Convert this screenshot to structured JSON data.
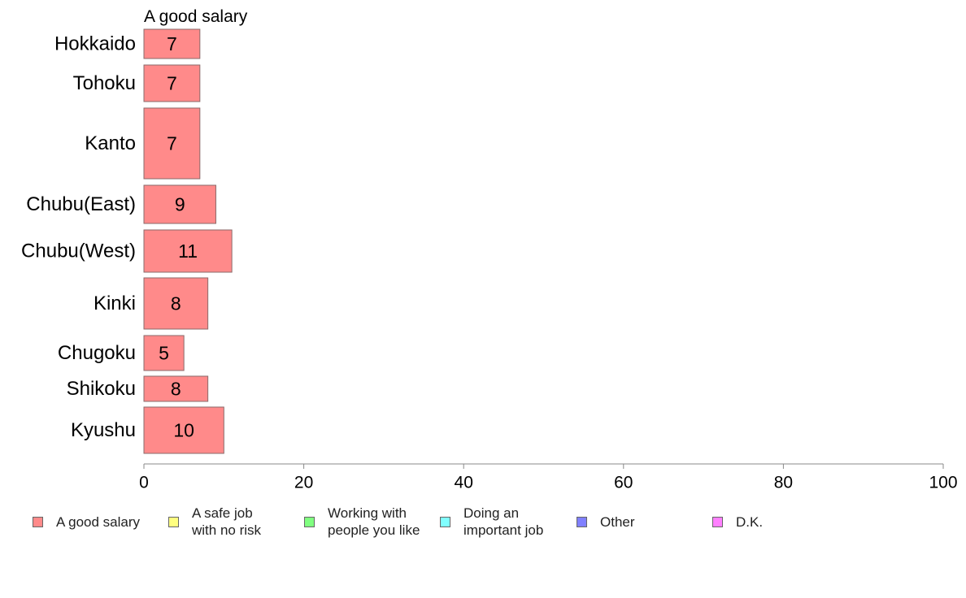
{
  "chart_data": {
    "type": "bar",
    "orientation": "horizontal",
    "title": "A good salary",
    "categories": [
      "Hokkaido",
      "Tohoku",
      "Kanto",
      "Chubu(East)",
      "Chubu(West)",
      "Kinki",
      "Chugoku",
      "Shikoku",
      "Kyushu"
    ],
    "series": [
      {
        "name": "A good salary",
        "values": [
          7,
          7,
          7,
          9,
          11,
          8,
          5,
          8,
          10
        ],
        "color": "#ff8a8a"
      }
    ],
    "xlim": [
      0,
      100
    ],
    "xticks": [
      "0",
      "20",
      "40",
      "60",
      "80",
      "100"
    ],
    "grid": false,
    "legend_position": "bottom"
  },
  "legend": [
    {
      "label": "A good salary",
      "color": "#ff8a8a"
    },
    {
      "label": "A safe job\nwith no risk",
      "color": "#ffff80"
    },
    {
      "label": "Working with\npeople you like",
      "color": "#80ff80"
    },
    {
      "label": "Doing an\nimportant job",
      "color": "#80ffff"
    },
    {
      "label": "Other",
      "color": "#8080ff"
    },
    {
      "label": "D.K.",
      "color": "#ff80ff"
    }
  ]
}
